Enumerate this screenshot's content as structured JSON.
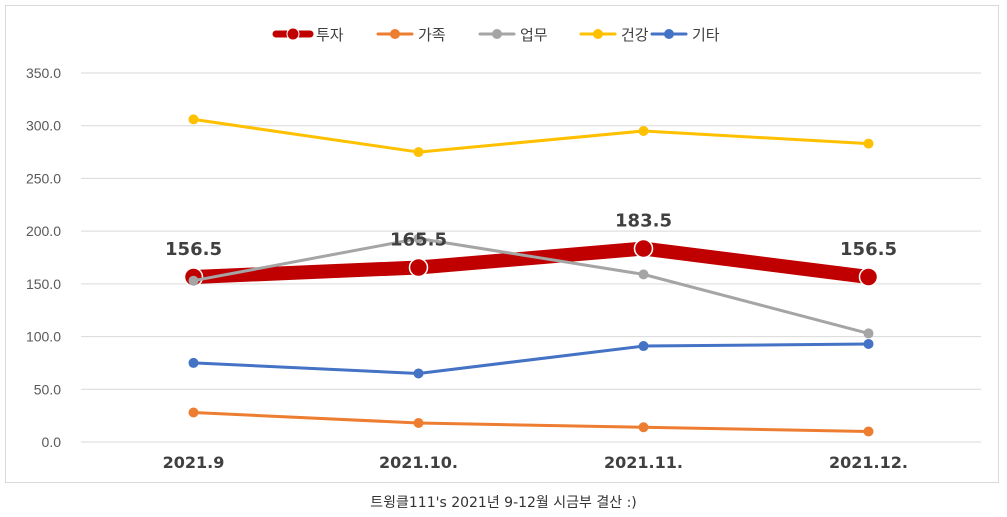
{
  "chart_data": {
    "type": "line",
    "title": "",
    "xlabel": "",
    "ylabel": "",
    "categories": [
      "2021.9",
      "2021.10.",
      "2021.11.",
      "2021.12."
    ],
    "ylim": [
      0,
      350
    ],
    "yticks": [
      "0.0",
      "50.0",
      "100.0",
      "150.0",
      "200.0",
      "250.0",
      "300.0",
      "350.0"
    ],
    "grid": true,
    "legend_position": "top",
    "series": [
      {
        "name": "투자",
        "color": "#c00000",
        "values": [
          156.5,
          165.5,
          183.5,
          156.5
        ],
        "emphasized": true,
        "show_labels": true
      },
      {
        "name": "가족",
        "color": "#ed7d31",
        "values": [
          28,
          18,
          14,
          10
        ]
      },
      {
        "name": "업무",
        "color": "#a5a5a5",
        "values": [
          153,
          193,
          159,
          103
        ]
      },
      {
        "name": "건강",
        "color": "#ffc000",
        "values": [
          306,
          275,
          295,
          283
        ]
      },
      {
        "name": "기타",
        "color": "#4472c4",
        "values": [
          75,
          65,
          91,
          93
        ]
      }
    ],
    "data_labels": [
      "156.5",
      "165.5",
      "183.5",
      "156.5"
    ]
  },
  "caption": "트윙클111's 2021년 9-12월 시금부 결산 :)"
}
